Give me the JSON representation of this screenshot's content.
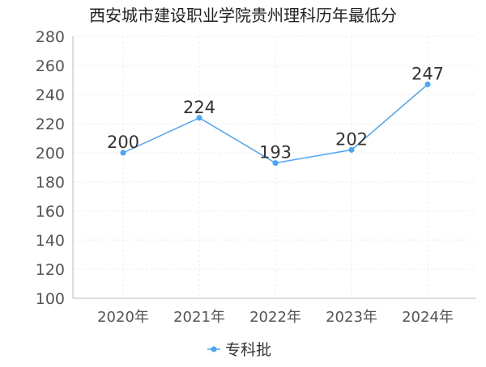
{
  "chart_data": {
    "type": "line",
    "title": "西安城市建设职业学院贵州理科历年最低分",
    "categories": [
      "2020年",
      "2021年",
      "2022年",
      "2023年",
      "2024年"
    ],
    "series": [
      {
        "name": "专科批",
        "values": [
          200,
          224,
          193,
          202,
          247
        ],
        "color": "#4da3f5"
      }
    ],
    "ylim": [
      100,
      280
    ],
    "yticks": [
      100,
      120,
      140,
      160,
      180,
      200,
      220,
      240,
      260,
      280
    ],
    "grid": true,
    "legend_position": "bottom-center",
    "xlabel": "",
    "ylabel": ""
  }
}
